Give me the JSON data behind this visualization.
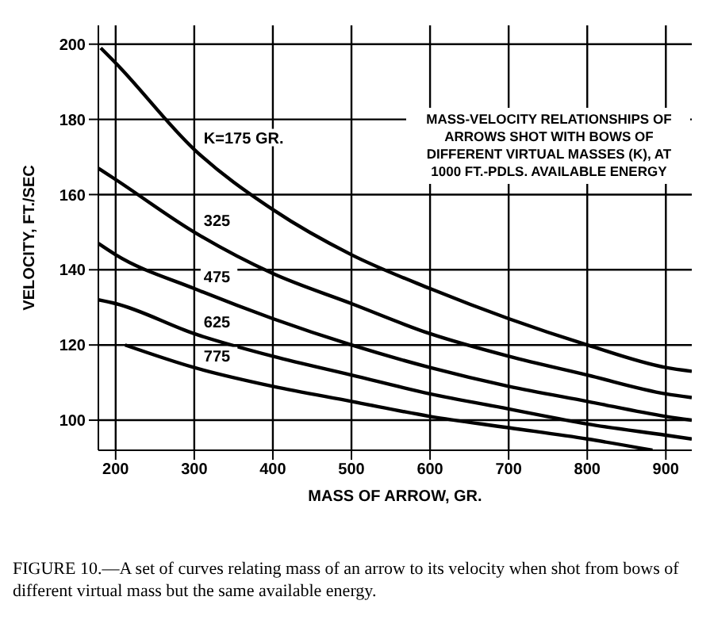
{
  "chart_data": {
    "type": "line",
    "title": "MASS-VELOCITY RELATIONSHIPS OF ARROWS SHOT WITH BOWS OF DIFFERENT VIRTUAL MASSES (K), AT 1000 FT.-PDLS. AVAILABLE ENERGY",
    "xlabel": "MASS OF ARROW, GR.",
    "ylabel": "VELOCITY, FT./SEC",
    "annotations": [
      "FIGURE 10.—A set of curves relating mass of an arrow to its velocity when shot from bows of different virtual mass but the same available energy."
    ],
    "series": [
      {
        "name": "K=175 GR.",
        "color": "#000000",
        "x": [
          181,
          200,
          300,
          400,
          500,
          600,
          700,
          800,
          900,
          933
        ],
        "values": [
          199,
          195,
          172,
          156,
          144,
          135,
          127,
          120,
          114,
          113
        ]
      },
      {
        "name": "325",
        "color": "#000000",
        "x": [
          178,
          200,
          300,
          400,
          500,
          600,
          700,
          800,
          900,
          933
        ],
        "values": [
          167,
          164,
          150,
          139,
          131,
          123,
          117,
          112,
          107,
          106
        ]
      },
      {
        "name": "475",
        "color": "#000000",
        "x": [
          178,
          200,
          300,
          400,
          500,
          600,
          700,
          800,
          900,
          933
        ],
        "values": [
          147,
          144,
          135,
          127,
          120,
          114,
          109,
          105,
          101,
          100
        ]
      },
      {
        "name": "625",
        "color": "#000000",
        "x": [
          178,
          200,
          300,
          400,
          500,
          600,
          700,
          800,
          900,
          933
        ],
        "values": [
          132,
          131,
          123,
          117,
          112,
          107,
          103,
          99,
          96,
          95
        ]
      },
      {
        "name": "775",
        "color": "#000000",
        "x": [
          212,
          300,
          400,
          500,
          600,
          700,
          800,
          883
        ],
        "values": [
          120,
          114,
          109,
          105,
          101,
          98,
          95,
          92
        ]
      }
    ],
    "xlim": [
      178,
      933
    ],
    "ylim": [
      92,
      205
    ],
    "xticks": [
      200,
      300,
      400,
      500,
      600,
      700,
      800,
      900
    ],
    "yticks": [
      100,
      120,
      140,
      160,
      180,
      200
    ],
    "grid": true,
    "legend": false,
    "marker": "none",
    "line_style": "solid"
  }
}
